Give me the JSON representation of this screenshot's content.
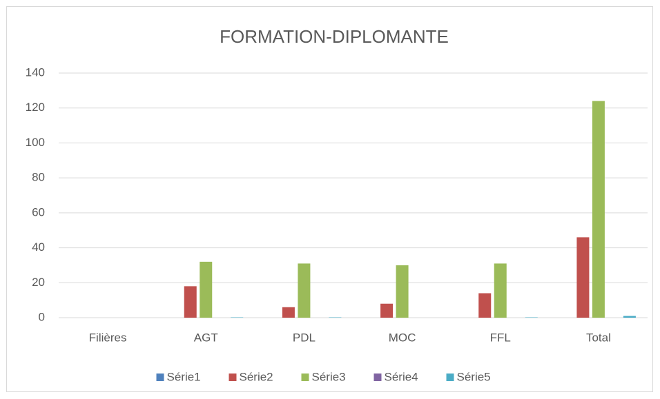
{
  "chart_data": {
    "type": "bar",
    "title": "FORMATION-DIPLOMANTE",
    "categories": [
      "Filières",
      "AGT",
      "PDL",
      "MOC",
      "FFL",
      "Total"
    ],
    "series": [
      {
        "name": "Série1",
        "color": "#4f81bd",
        "values": [
          null,
          0,
          0,
          0,
          0,
          0
        ]
      },
      {
        "name": "Série2",
        "color": "#c0504d",
        "values": [
          null,
          18,
          6,
          8,
          14,
          46
        ]
      },
      {
        "name": "Série3",
        "color": "#9bbb59",
        "values": [
          null,
          32,
          31,
          30,
          31,
          124
        ]
      },
      {
        "name": "Série4",
        "color": "#8064a2",
        "values": [
          null,
          0,
          0,
          0,
          0,
          0
        ]
      },
      {
        "name": "Série5",
        "color": "#4bacc6",
        "values": [
          null,
          0.2,
          0.2,
          0,
          0.2,
          1
        ]
      }
    ],
    "ylim": [
      0,
      140
    ],
    "yticks": [
      0,
      20,
      40,
      60,
      80,
      100,
      120,
      140
    ],
    "grid": true,
    "legend": "bottom"
  }
}
